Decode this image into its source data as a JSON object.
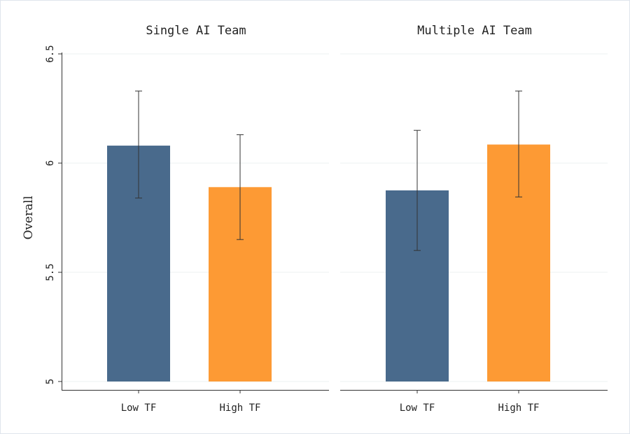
{
  "chart_data": {
    "type": "bar",
    "ylabel": "Overall",
    "ylim": [
      5,
      6.5
    ],
    "yticks": [
      "5",
      "5.5",
      "6",
      "6.5"
    ],
    "grid": true,
    "colors": {
      "Low TF": "#496a8c",
      "High TF": "#fd9a34"
    },
    "panels": [
      {
        "title": "Single AI Team",
        "categories": [
          "Low TF",
          "High TF"
        ],
        "values": [
          6.08,
          5.89
        ],
        "ci_low": [
          5.84,
          5.65
        ],
        "ci_high": [
          6.33,
          6.13
        ]
      },
      {
        "title": "Multiple AI Team",
        "categories": [
          "Low TF",
          "High TF"
        ],
        "values": [
          5.875,
          6.085
        ],
        "ci_low": [
          5.6,
          5.845
        ],
        "ci_high": [
          6.15,
          6.33
        ]
      }
    ]
  }
}
